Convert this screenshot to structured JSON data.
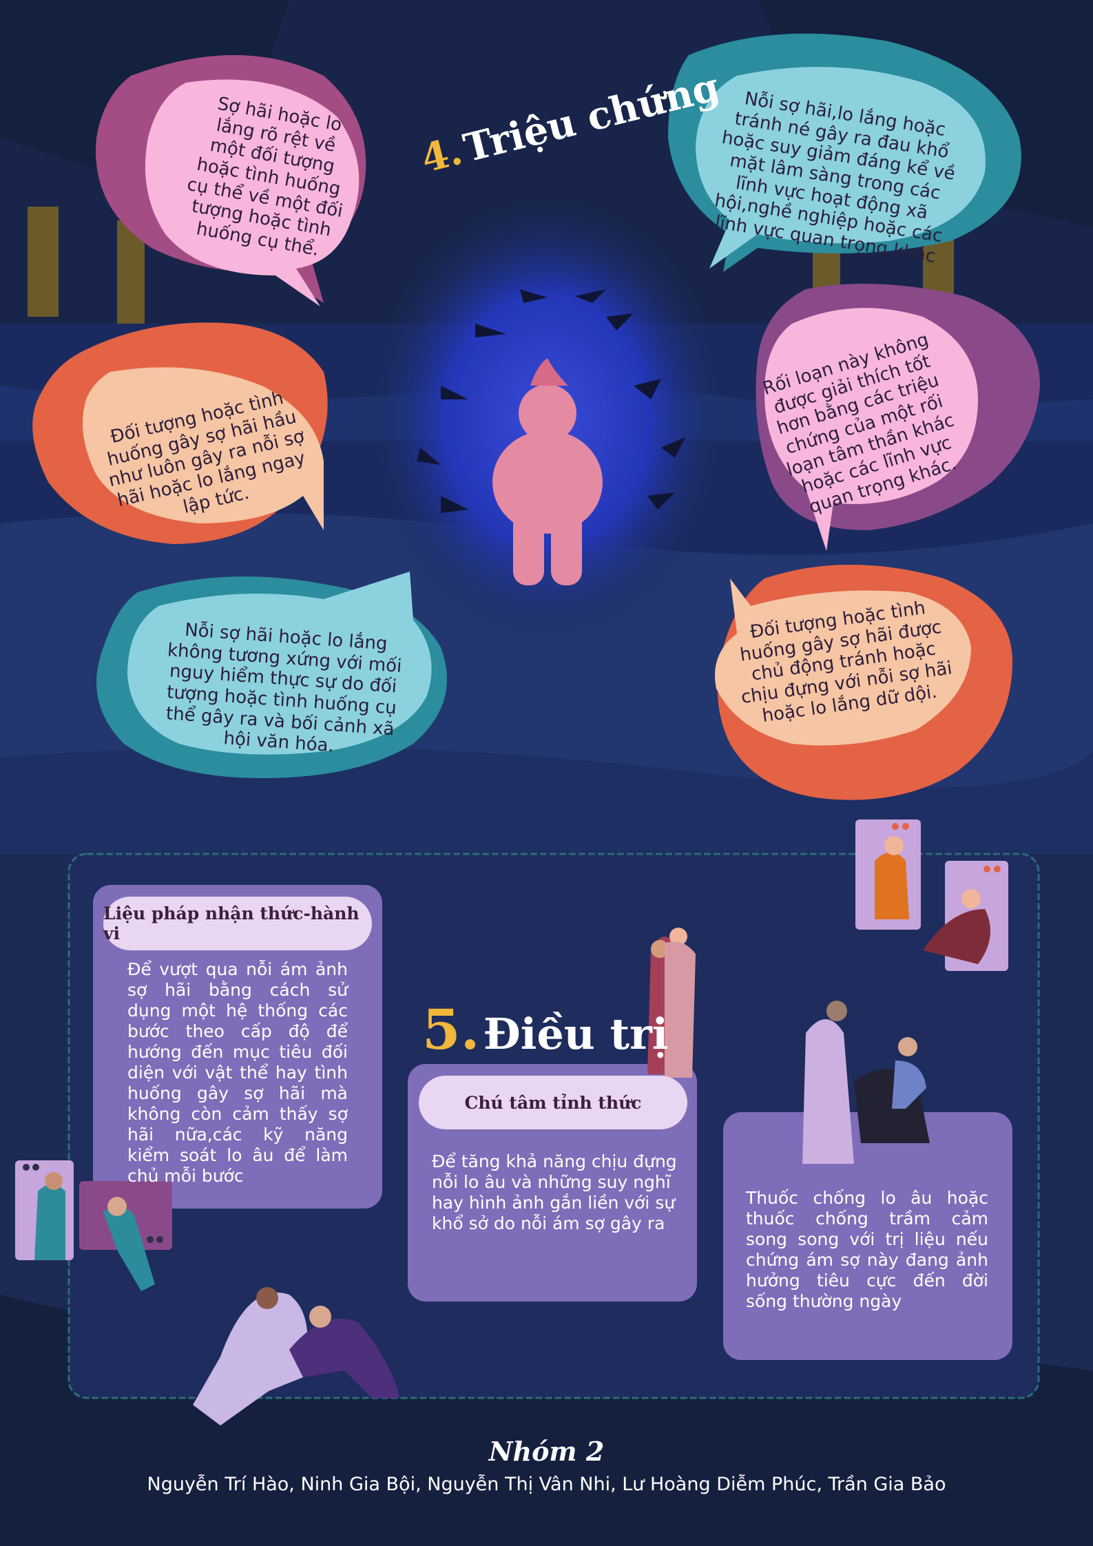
{
  "colors": {
    "background": "#1c2a55",
    "accent_number": "#f2b73b",
    "panel_purple": "#7e6db8",
    "panel_light": "#e9d6f3"
  },
  "symptoms": {
    "title_number": "4.",
    "title_text": "Triệu chứng",
    "bubbles": [
      "Sợ hãi hoặc lo lắng rõ rệt về một đối tượng hoặc tình huống cụ thể về một đối tượng hoặc tình huống cụ thể.",
      "Nỗi sợ hãi,lo lắng hoặc tránh né gây ra đau khổ hoặc suy giảm đáng kể về mặt lâm sàng trong các lĩnh vực hoạt động xã hội,nghề nghiệp hoặc các lĩnh vực quan trọng khác",
      "Đối tượng hoặc tình huống gây sợ hãi hầu như luôn gây ra nỗi sợ hãi hoặc lo lắng ngay lập tức.",
      "Rối loạn này không được giải thích tốt hơn bằng các triệu chứng của một rối loạn tâm thần khác hoặc các lĩnh vực quan trọng khác.",
      "Nỗi sợ hãi hoặc lo lắng không tương xứng với mối nguy hiểm thực sự do đối tượng hoặc tình huống cụ thể gây ra và bối cảnh xã hội văn hóa.",
      "Đối tượng hoặc tình huống gây sợ hãi được chủ động tránh hoặc chịu đựng với nỗi sợ hãi hoặc lo lắng dữ dội."
    ]
  },
  "treatment": {
    "title_number": "5.",
    "title_text": "Điều trị",
    "cbt": {
      "label": "Liệu pháp nhận thức-hành vi",
      "text": "Để vượt qua nỗi ám ảnh sợ hãi bằng cách sử dụng một hệ thống các bước theo cấp độ để hướng đến mục tiêu đối diện với vật thể hay tình huống gây sợ hãi mà không còn cảm thấy sợ hãi nữa,các kỹ năng kiểm soát lo âu để làm chủ mỗi bước"
    },
    "mindfulness": {
      "label": "Chú tâm tỉnh thức",
      "text": "Để tăng khả năng chịu đựng nỗi lo âu và những suy nghĩ hay hình ảnh gắn liền với sự khổ sở do nỗi ám sợ gây ra"
    },
    "medication": {
      "text": "Thuốc chống lo âu hoặc thuốc chống trầm cảm song song với trị liệu nếu chứng ám sợ này đang ảnh hưởng tiêu cực đến đời sống thường ngày"
    }
  },
  "footer": {
    "group": "Nhóm 2",
    "members": "Nguyễn Trí Hào, Ninh Gia Bội, Nguyễn Thị Vân Nhi, Lư Hoàng Diễm Phúc, Trần Gia Bảo"
  }
}
